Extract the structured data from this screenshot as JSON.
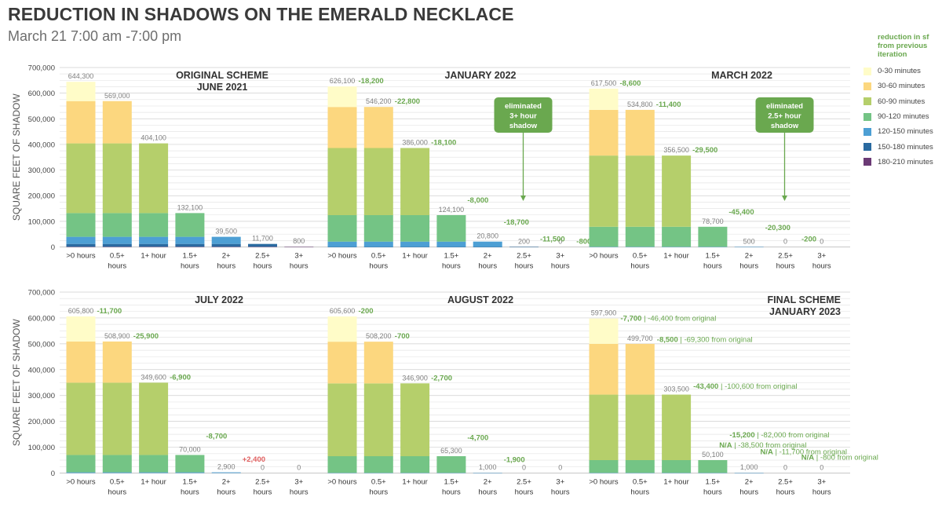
{
  "title": "REDUCTION IN SHADOWS ON THE EMERALD NECKLACE",
  "subtitle": "March 21 7:00 am -7:00 pm",
  "legend": {
    "title": "reduction in sf from previous iteration",
    "items": [
      {
        "label": "0-30 minutes",
        "color": "#fffcc8"
      },
      {
        "label": "30-60 minutes",
        "color": "#fcd77f"
      },
      {
        "label": "60-90 minutes",
        "color": "#b5cf6b"
      },
      {
        "label": "90-120 minutes",
        "color": "#74c485"
      },
      {
        "label": "120-150 minutes",
        "color": "#4d9fd4"
      },
      {
        "label": "150-180 minutes",
        "color": "#2a6aa0"
      },
      {
        "label": "180-210 minutes",
        "color": "#6b3a75"
      }
    ]
  },
  "colors": {
    "reduction": "#6aa84f",
    "increase": "#e06060",
    "value_label": "#808080",
    "band_title": "#333333"
  },
  "chart_data": {
    "type": "bar",
    "stacked": true,
    "ylabel": "SQUARE FEET OF SHADOW",
    "ylim": [
      0,
      700000
    ],
    "yticks": [
      "0",
      "100,000",
      "200,000",
      "300,000",
      "400,000",
      "500,000",
      "600,000",
      "700,000"
    ],
    "categories": [
      ">0 hours",
      "0.5+ hours",
      "1+ hour",
      "1.5+ hours",
      "2+ hours",
      "2.5+ hours",
      "3+ hours"
    ],
    "bands": [
      ">0 hours",
      "0-30 minutes",
      "30-60 minutes",
      "60-90 minutes",
      "90-120 minutes",
      "120-150 minutes",
      "150-180 minutes",
      "180-210 minutes"
    ],
    "annotations": [
      {
        "text": "eliminated 3+ hour shadow",
        "panel": 1,
        "category": 5
      },
      {
        "text": "eliminated 2.5+ hour shadow",
        "panel": 2,
        "category": 5
      }
    ],
    "panels": [
      {
        "title": "ORIGINAL SCHEME JUNE 2021",
        "totals": [
          644300,
          569000,
          404100,
          132100,
          39500,
          11700,
          800
        ],
        "total_labels": [
          "644,300",
          "569,000",
          "404,100",
          "132,100",
          "39,500",
          "11,700",
          "800"
        ],
        "reductions": []
      },
      {
        "title": "JANUARY 2022",
        "totals": [
          626100,
          546200,
          386000,
          124100,
          20800,
          200,
          0
        ],
        "total_labels": [
          "626,100",
          "546,200",
          "386,000",
          "124,100",
          "20,800",
          "200",
          "0"
        ],
        "reductions": [
          {
            "category": 0,
            "text": "-18,200",
            "kind": "reduction"
          },
          {
            "category": 1,
            "text": "-22,800",
            "kind": "reduction"
          },
          {
            "category": 2,
            "text": "-18,100",
            "kind": "reduction"
          },
          {
            "category": 3,
            "text": "-8,000",
            "kind": "reduction"
          },
          {
            "category": 4,
            "text": "-18,700",
            "kind": "reduction"
          },
          {
            "category": 5,
            "text": "-11,500",
            "kind": "reduction"
          },
          {
            "category": 6,
            "text": "-800",
            "kind": "reduction"
          }
        ]
      },
      {
        "title": "MARCH 2022",
        "totals": [
          617500,
          534800,
          356500,
          78700,
          500,
          0,
          0
        ],
        "total_labels": [
          "617,500",
          "534,800",
          "356,500",
          "78,700",
          "500",
          "0",
          "0"
        ],
        "reductions": [
          {
            "category": 0,
            "text": "-8,600",
            "kind": "reduction"
          },
          {
            "category": 1,
            "text": "-11,400",
            "kind": "reduction"
          },
          {
            "category": 2,
            "text": "-29,500",
            "kind": "reduction"
          },
          {
            "category": 3,
            "text": "-45,400",
            "kind": "reduction"
          },
          {
            "category": 4,
            "text": "-20,300",
            "kind": "reduction"
          },
          {
            "category": 5,
            "text": "-200",
            "kind": "reduction"
          }
        ]
      },
      {
        "title": "JULY 2022",
        "totals": [
          605800,
          508900,
          349600,
          70000,
          2900,
          0,
          0
        ],
        "total_labels": [
          "605,800",
          "508,900",
          "349,600",
          "70,000",
          "2,900",
          "0",
          "0"
        ],
        "reductions": [
          {
            "category": 0,
            "text": "-11,700",
            "kind": "reduction"
          },
          {
            "category": 1,
            "text": "-25,900",
            "kind": "reduction"
          },
          {
            "category": 2,
            "text": "-6,900",
            "kind": "reduction"
          },
          {
            "category": 3,
            "text": "-8,700",
            "kind": "reduction"
          },
          {
            "category": 4,
            "text": "+2,400",
            "kind": "increase"
          }
        ]
      },
      {
        "title": "AUGUST 2022",
        "totals": [
          605600,
          508200,
          346900,
          65300,
          1000,
          0,
          0
        ],
        "total_labels": [
          "605,600",
          "508,200",
          "346,900",
          "65,300",
          "1,000",
          "0",
          "0"
        ],
        "reductions": [
          {
            "category": 0,
            "text": "-200",
            "kind": "reduction"
          },
          {
            "category": 1,
            "text": "-700",
            "kind": "reduction"
          },
          {
            "category": 2,
            "text": "-2,700",
            "kind": "reduction"
          },
          {
            "category": 3,
            "text": "-4,700",
            "kind": "reduction"
          },
          {
            "category": 4,
            "text": "-1,900",
            "kind": "reduction"
          }
        ]
      },
      {
        "title": "FINAL SCHEME JANUARY 2023",
        "totals": [
          597900,
          499700,
          303500,
          50100,
          1000,
          0,
          0
        ],
        "total_labels": [
          "597,900",
          "499,700",
          "303,500",
          "50,100",
          "1,000",
          "0",
          "0"
        ],
        "reductions": [
          {
            "category": 0,
            "text": "-7,700",
            "kind": "reduction",
            "suffix": " | -46,400 from original"
          },
          {
            "category": 1,
            "text": "-8,500",
            "kind": "reduction",
            "suffix": " | -69,300 from original"
          },
          {
            "category": 2,
            "text": "-43,400",
            "kind": "reduction",
            "suffix": " | -100,600 from original"
          },
          {
            "category": 3,
            "text": "-15,200",
            "kind": "reduction",
            "suffix": " | -82,000 from original"
          },
          {
            "category": 4,
            "text": "N/A",
            "kind": "reduction",
            "suffix": " | -38,500 from original"
          },
          {
            "category": 5,
            "text": "N/A",
            "kind": "reduction",
            "suffix": " | -11,700 from original"
          },
          {
            "category": 6,
            "text": "N/A",
            "kind": "reduction",
            "suffix": " | -800 from original"
          }
        ]
      }
    ]
  }
}
